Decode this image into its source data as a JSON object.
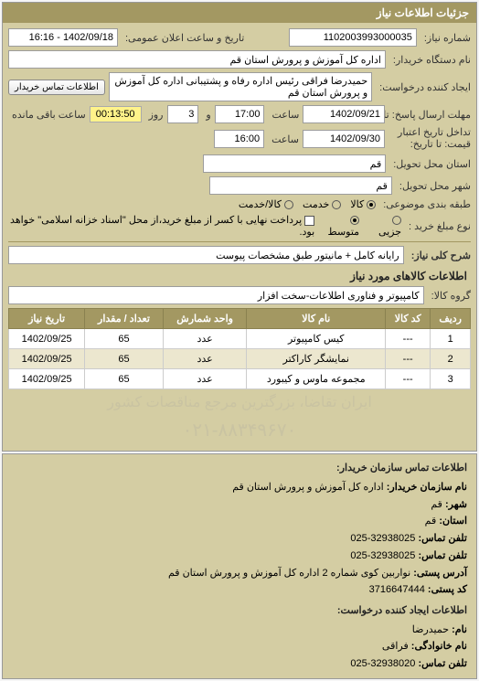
{
  "panel": {
    "title": "جزئیات اطلاعات نیاز"
  },
  "header_row": {
    "need_no_label": "شماره نیاز:",
    "need_no": "1102003993000035",
    "announce_label": "تاریخ و ساعت اعلان عمومی:",
    "announce_value": "1402/09/18 - 16:16"
  },
  "buyer": {
    "org_label": "نام دستگاه خریدار:",
    "org_value": "اداره کل آموزش و پرورش استان قم",
    "creator_label": "ایجاد کننده درخواست:",
    "creator_value": "حمیدرضا فراقی رئیس اداره رفاه و پشتیبانی اداره کل آموزش و پرورش استان قم",
    "contact_btn": "اطلاعات تماس خریدار"
  },
  "dates": {
    "resp_from_label": "مهلت ارسال پاسخ: تا",
    "resp_from_date": "1402/09/21",
    "resp_from_time_lbl": "ساعت",
    "resp_from_time": "17:00",
    "and_lbl": "و",
    "days_value": "3",
    "days_label": "روز",
    "remain_value": "00:13:50",
    "remain_label": "ساعت باقی مانده",
    "valid_to_label": "تداخل تاریخ اعتبار\nقیمت: تا تاریخ:",
    "valid_to_date": "1402/09/30",
    "valid_to_time_lbl": "ساعت",
    "valid_to_time": "16:00"
  },
  "location": {
    "province_label": "استان محل تحویل:",
    "province": "قم",
    "city_label": "شهر محل تحویل:",
    "city": "قم"
  },
  "classify": {
    "label": "طبقه بندی موضوعی:",
    "opts": {
      "goods": "کالا",
      "service": "خدمت",
      "both": "کالا/خدمت"
    },
    "selected": "goods"
  },
  "buy_mode": {
    "label": "نوع مبلغ خرید :",
    "opts": {
      "partial": "جزیی",
      "medium": "متوسط"
    },
    "selected": "medium",
    "note_checkbox": "پرداخت نهایی با کسر از مبلغ خرید،از محل \"اسناد خزانه اسلامی\" خواهد بود."
  },
  "need_desc": {
    "label": "شرح کلی نیاز:",
    "value": "رایانه کامل + مانیتور طبق مشخصات پیوست"
  },
  "goods_section": {
    "title": "اطلاعات کالاهای مورد نیاز",
    "group_label": "گروه کالا:",
    "group_value": "کامپیوتر و فناوری اطلاعات-سخت افزار"
  },
  "table": {
    "cols": [
      "ردیف",
      "کد کالا",
      "نام کالا",
      "واحد شمارش",
      "تعداد / مقدار",
      "تاریخ نیاز"
    ],
    "rows": [
      [
        "1",
        "---",
        "کیس کامپیوتر",
        "عدد",
        "65",
        "1402/09/25"
      ],
      [
        "2",
        "---",
        "نمایشگر کاراکتر",
        "عدد",
        "65",
        "1402/09/25"
      ],
      [
        "3",
        "---",
        "مجموعه ماوس و کیبورد",
        "عدد",
        "65",
        "1402/09/25"
      ]
    ]
  },
  "watermark_line1": "ایران تقاضا، بزرگترین مرجع مناقصات کشور",
  "watermark_line2": "۰۲۱-۸۸۳۴۹۶۷۰",
  "contact": {
    "title1": "اطلاعات تماس سازمان خریدار:",
    "org_label": "نام سازمان خریدار:",
    "org_value": "اداره کل آموزش و پرورش استان قم",
    "city_label": "شهر:",
    "city_value": "قم",
    "prov_label": "استان:",
    "prov_value": "قم",
    "tel_label": "تلفن تماس:",
    "tel_value": "32938025-025",
    "fax_label": "تلفن تماس:",
    "fax_value": "32938025-025",
    "addr_label": "آدرس پستی:",
    "addr_value": "نواربین کوی شماره 2 اداره کل آموزش و پرورش استان قم",
    "post_label": "کد پستی:",
    "post_value": "3716647444",
    "title2": "اطلاعات ایجاد کننده درخواست:",
    "fname_label": "نام:",
    "fname_value": "حمیدرضا",
    "lname_label": "نام خانوادگی:",
    "lname_value": "فراقی",
    "ctel_label": "تلفن تماس:",
    "ctel_value": "32938020-025"
  }
}
